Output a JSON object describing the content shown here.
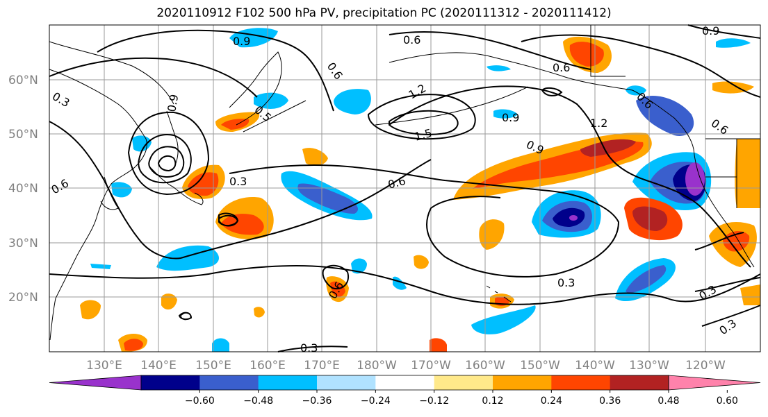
{
  "title": "2020110912 F102 500 hPa PV, precipitation PC (2020111312 - 2020111412)",
  "map": {
    "lat_labels": [
      "60°N",
      "50°N",
      "40°N",
      "30°N",
      "20°N"
    ],
    "lon_labels": [
      "130°E",
      "140°E",
      "150°E",
      "160°E",
      "170°E",
      "180°W",
      "170°W",
      "160°W",
      "150°W",
      "140°W",
      "130°W",
      "120°W"
    ],
    "contour_labels": [
      "0.9",
      "0.6",
      "0.6",
      "0.9",
      "0.6",
      "0.3",
      "0.9",
      "0.5",
      "0.3",
      "0.6",
      "1.2",
      "1.5",
      "0.9",
      "0.6",
      "0.9",
      "1.2",
      "0.6",
      "0.3",
      "0.3",
      "0.3",
      "0.6",
      "0.3",
      "0.6"
    ]
  },
  "colorbar": {
    "tick_labels": [
      "−0.60",
      "−0.48",
      "−0.36",
      "−0.24",
      "−0.12",
      "0.12",
      "0.24",
      "0.36",
      "0.48",
      "0.60"
    ],
    "colors": [
      "#9932cc",
      "#00008b",
      "#3a5fcd",
      "#00bfff",
      "#b0e2ff",
      "#ffffff",
      "#ffe98a",
      "#ffa500",
      "#ff4500",
      "#b22222",
      "#ff82ab"
    ]
  }
}
